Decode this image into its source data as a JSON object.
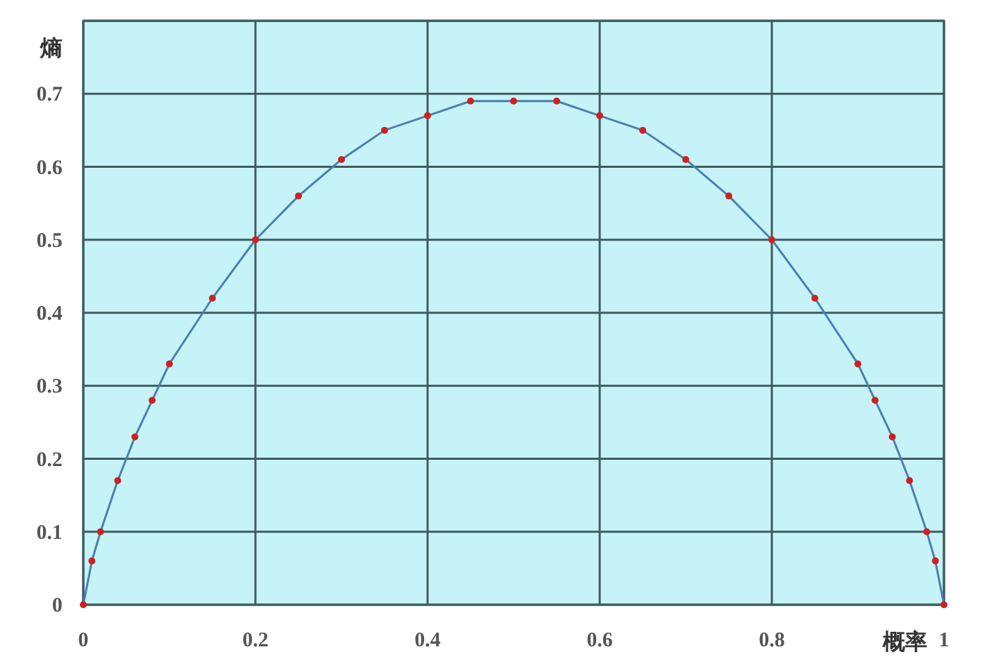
{
  "chart_data": {
    "type": "line",
    "xlabel": "概率",
    "ylabel": "熵",
    "x": [
      0,
      0.01,
      0.02,
      0.04,
      0.06,
      0.08,
      0.1,
      0.15,
      0.2,
      0.25,
      0.3,
      0.35,
      0.4,
      0.45,
      0.5,
      0.55,
      0.6,
      0.65,
      0.7,
      0.75,
      0.8,
      0.85,
      0.9,
      0.92,
      0.94,
      0.96,
      0.98,
      0.99,
      1
    ],
    "series": [
      {
        "color": "#cc2222",
        "values": [
          0,
          0.06,
          0.1,
          0.17,
          0.23,
          0.28,
          0.33,
          0.42,
          0.5,
          0.56,
          0.61,
          0.65,
          0.67,
          0.69,
          0.69,
          0.69,
          0.67,
          0.65,
          0.61,
          0.56,
          0.5,
          0.42,
          0.33,
          0.28,
          0.23,
          0.17,
          0.1,
          0.06,
          0
        ]
      }
    ],
    "xlim": [
      0,
      1
    ],
    "xticks": [
      0,
      0.2,
      0.4,
      0.6,
      0.8,
      1
    ],
    "ylim": [
      0,
      0.8
    ],
    "yticks": [
      0,
      0.1,
      0.2,
      0.3,
      0.4,
      0.5,
      0.6,
      0.7,
      {
        "value": 0.8,
        "label": null
      }
    ],
    "grid": true,
    "marker": "circle",
    "line_style": "solid"
  }
}
